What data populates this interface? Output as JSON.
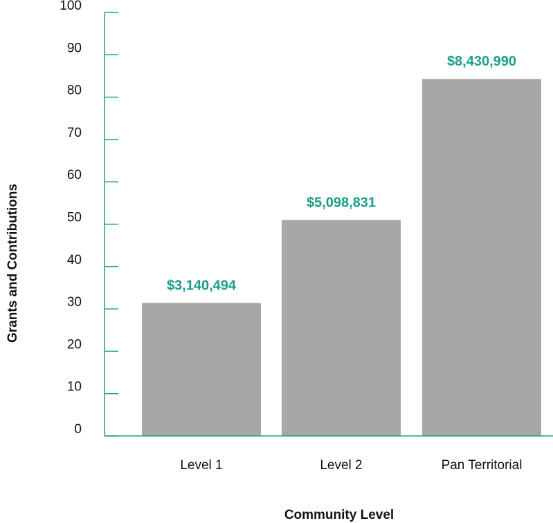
{
  "chart_data": {
    "type": "bar",
    "title": "",
    "xlabel": "Community Level",
    "ylabel": "Grants and Contributions",
    "categories": [
      "Level 1",
      "Level 2",
      "Pan Territorial"
    ],
    "values": [
      31.4,
      51,
      84.3
    ],
    "data_labels": [
      "$3,140,494",
      "$5,098,831",
      "$8,430,990"
    ],
    "ylim": [
      0,
      100
    ],
    "yticks": [
      0,
      10,
      20,
      30,
      40,
      50,
      60,
      70,
      80,
      90,
      100
    ],
    "grid": false,
    "legend": "none",
    "colors": {
      "bar": "#a7a7aa",
      "axis": "#1a9e8a",
      "data_label": "#1a9e8a"
    }
  }
}
